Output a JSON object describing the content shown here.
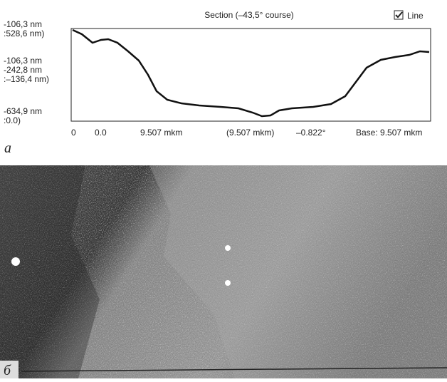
{
  "panel_a": {
    "label": "а",
    "title": "Section (–43,5° course)",
    "checkbox_label": "Line",
    "left_labels": [
      "-106,3 nm",
      ":528,6 nm)",
      "-106,3 nm",
      "-242,8 nm",
      ":–136,4 nm)",
      "-634,9 nm",
      ":0.0)"
    ],
    "bottom_labels": [
      "0",
      "0.0",
      "9.507 mkm",
      "(9.507 mkm)",
      "–0.822°",
      "Base: 9.507 mkm"
    ]
  },
  "panel_b": {
    "label": "б"
  }
}
